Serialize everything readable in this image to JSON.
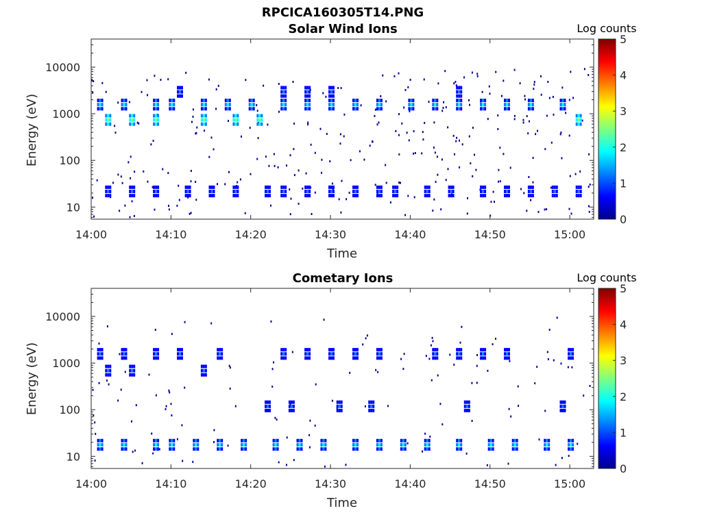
{
  "figure_title": "RPCICA160305T14.PNG",
  "colormap": [
    "#00008f",
    "#0000ff",
    "#007fff",
    "#00ffff",
    "#7fff7f",
    "#ffff00",
    "#ff7f00",
    "#ff0000",
    "#7f0000"
  ],
  "chart_data": [
    {
      "type": "heatmap",
      "title": "Solar Wind Ions",
      "xlabel": "Time",
      "ylabel": "Energy (eV)",
      "y_scale": "log",
      "ylim": [
        5.5,
        40000
      ],
      "xlim": [
        "14:00",
        "15:03"
      ],
      "x_ticks": [
        "14:00",
        "14:10",
        "14:20",
        "14:30",
        "14:40",
        "14:50",
        "15:00"
      ],
      "y_ticks": [
        10,
        100,
        1000,
        10000
      ],
      "y_tick_labels": [
        "10",
        "100",
        "1000",
        "10000"
      ],
      "colorbar": {
        "label": "Log counts",
        "min": 0,
        "max": 5,
        "ticks": [
          "0",
          "1",
          "2",
          "3",
          "4",
          "5"
        ]
      },
      "bands": [
        {
          "energy_eV": 1600,
          "log_counts": 2.0,
          "times": [
            "14:01",
            "14:04",
            "14:08",
            "14:10",
            "14:14",
            "14:17",
            "14:20",
            "14:24",
            "14:27",
            "14:30",
            "14:33",
            "14:36",
            "14:40",
            "14:43",
            "14:46",
            "14:49",
            "14:52",
            "14:55",
            "14:59"
          ]
        },
        {
          "energy_eV": 750,
          "log_counts": 2.4,
          "times": [
            "14:02",
            "14:05",
            "14:08",
            "14:14",
            "14:18",
            "14:21",
            "15:01"
          ]
        },
        {
          "energy_eV": 3000,
          "log_counts": 1.2,
          "times": [
            "14:11",
            "14:24",
            "14:27",
            "14:30",
            "14:46"
          ]
        },
        {
          "energy_eV": 22,
          "log_counts": 1.0,
          "times": [
            "14:02",
            "14:05",
            "14:08",
            "14:12",
            "14:15",
            "14:18",
            "14:22",
            "14:24",
            "14:27",
            "14:30",
            "14:33",
            "14:36",
            "14:38",
            "14:42",
            "14:45",
            "14:49",
            "14:52",
            "14:55",
            "14:58",
            "15:01"
          ]
        }
      ],
      "scatter_density": 0.6
    },
    {
      "type": "heatmap",
      "title": "Cometary Ions",
      "xlabel": "Time",
      "ylabel": "Energy (eV)",
      "y_scale": "log",
      "ylim": [
        5.5,
        40000
      ],
      "xlim": [
        "14:00",
        "15:03"
      ],
      "x_ticks": [
        "14:00",
        "14:10",
        "14:20",
        "14:30",
        "14:40",
        "14:50",
        "15:00"
      ],
      "y_ticks": [
        10,
        100,
        1000,
        10000
      ],
      "y_tick_labels": [
        "10",
        "100",
        "1000",
        "10000"
      ],
      "colorbar": {
        "label": "Log counts",
        "min": 0,
        "max": 5,
        "ticks": [
          "0",
          "1",
          "2",
          "3",
          "4",
          "5"
        ]
      },
      "bands": [
        {
          "energy_eV": 18,
          "log_counts": 1.9,
          "times": [
            "14:01",
            "14:04",
            "14:08",
            "14:10",
            "14:13",
            "14:16",
            "14:19",
            "14:23",
            "14:26",
            "14:29",
            "14:33",
            "14:36",
            "14:39",
            "14:42",
            "14:46",
            "14:50",
            "14:53",
            "14:57",
            "15:00"
          ]
        },
        {
          "energy_eV": 1600,
          "log_counts": 1.0,
          "times": [
            "14:01",
            "14:04",
            "14:08",
            "14:11",
            "14:16",
            "14:24",
            "14:27",
            "14:30",
            "14:33",
            "14:36",
            "14:43",
            "14:46",
            "14:49",
            "14:52",
            "15:00"
          ]
        },
        {
          "energy_eV": 700,
          "log_counts": 1.3,
          "times": [
            "14:02",
            "14:05",
            "14:14"
          ]
        },
        {
          "energy_eV": 120,
          "log_counts": 1.0,
          "times": [
            "14:22",
            "14:25",
            "14:31",
            "14:35",
            "14:47",
            "14:59"
          ]
        }
      ],
      "scatter_density": 0.25
    }
  ]
}
